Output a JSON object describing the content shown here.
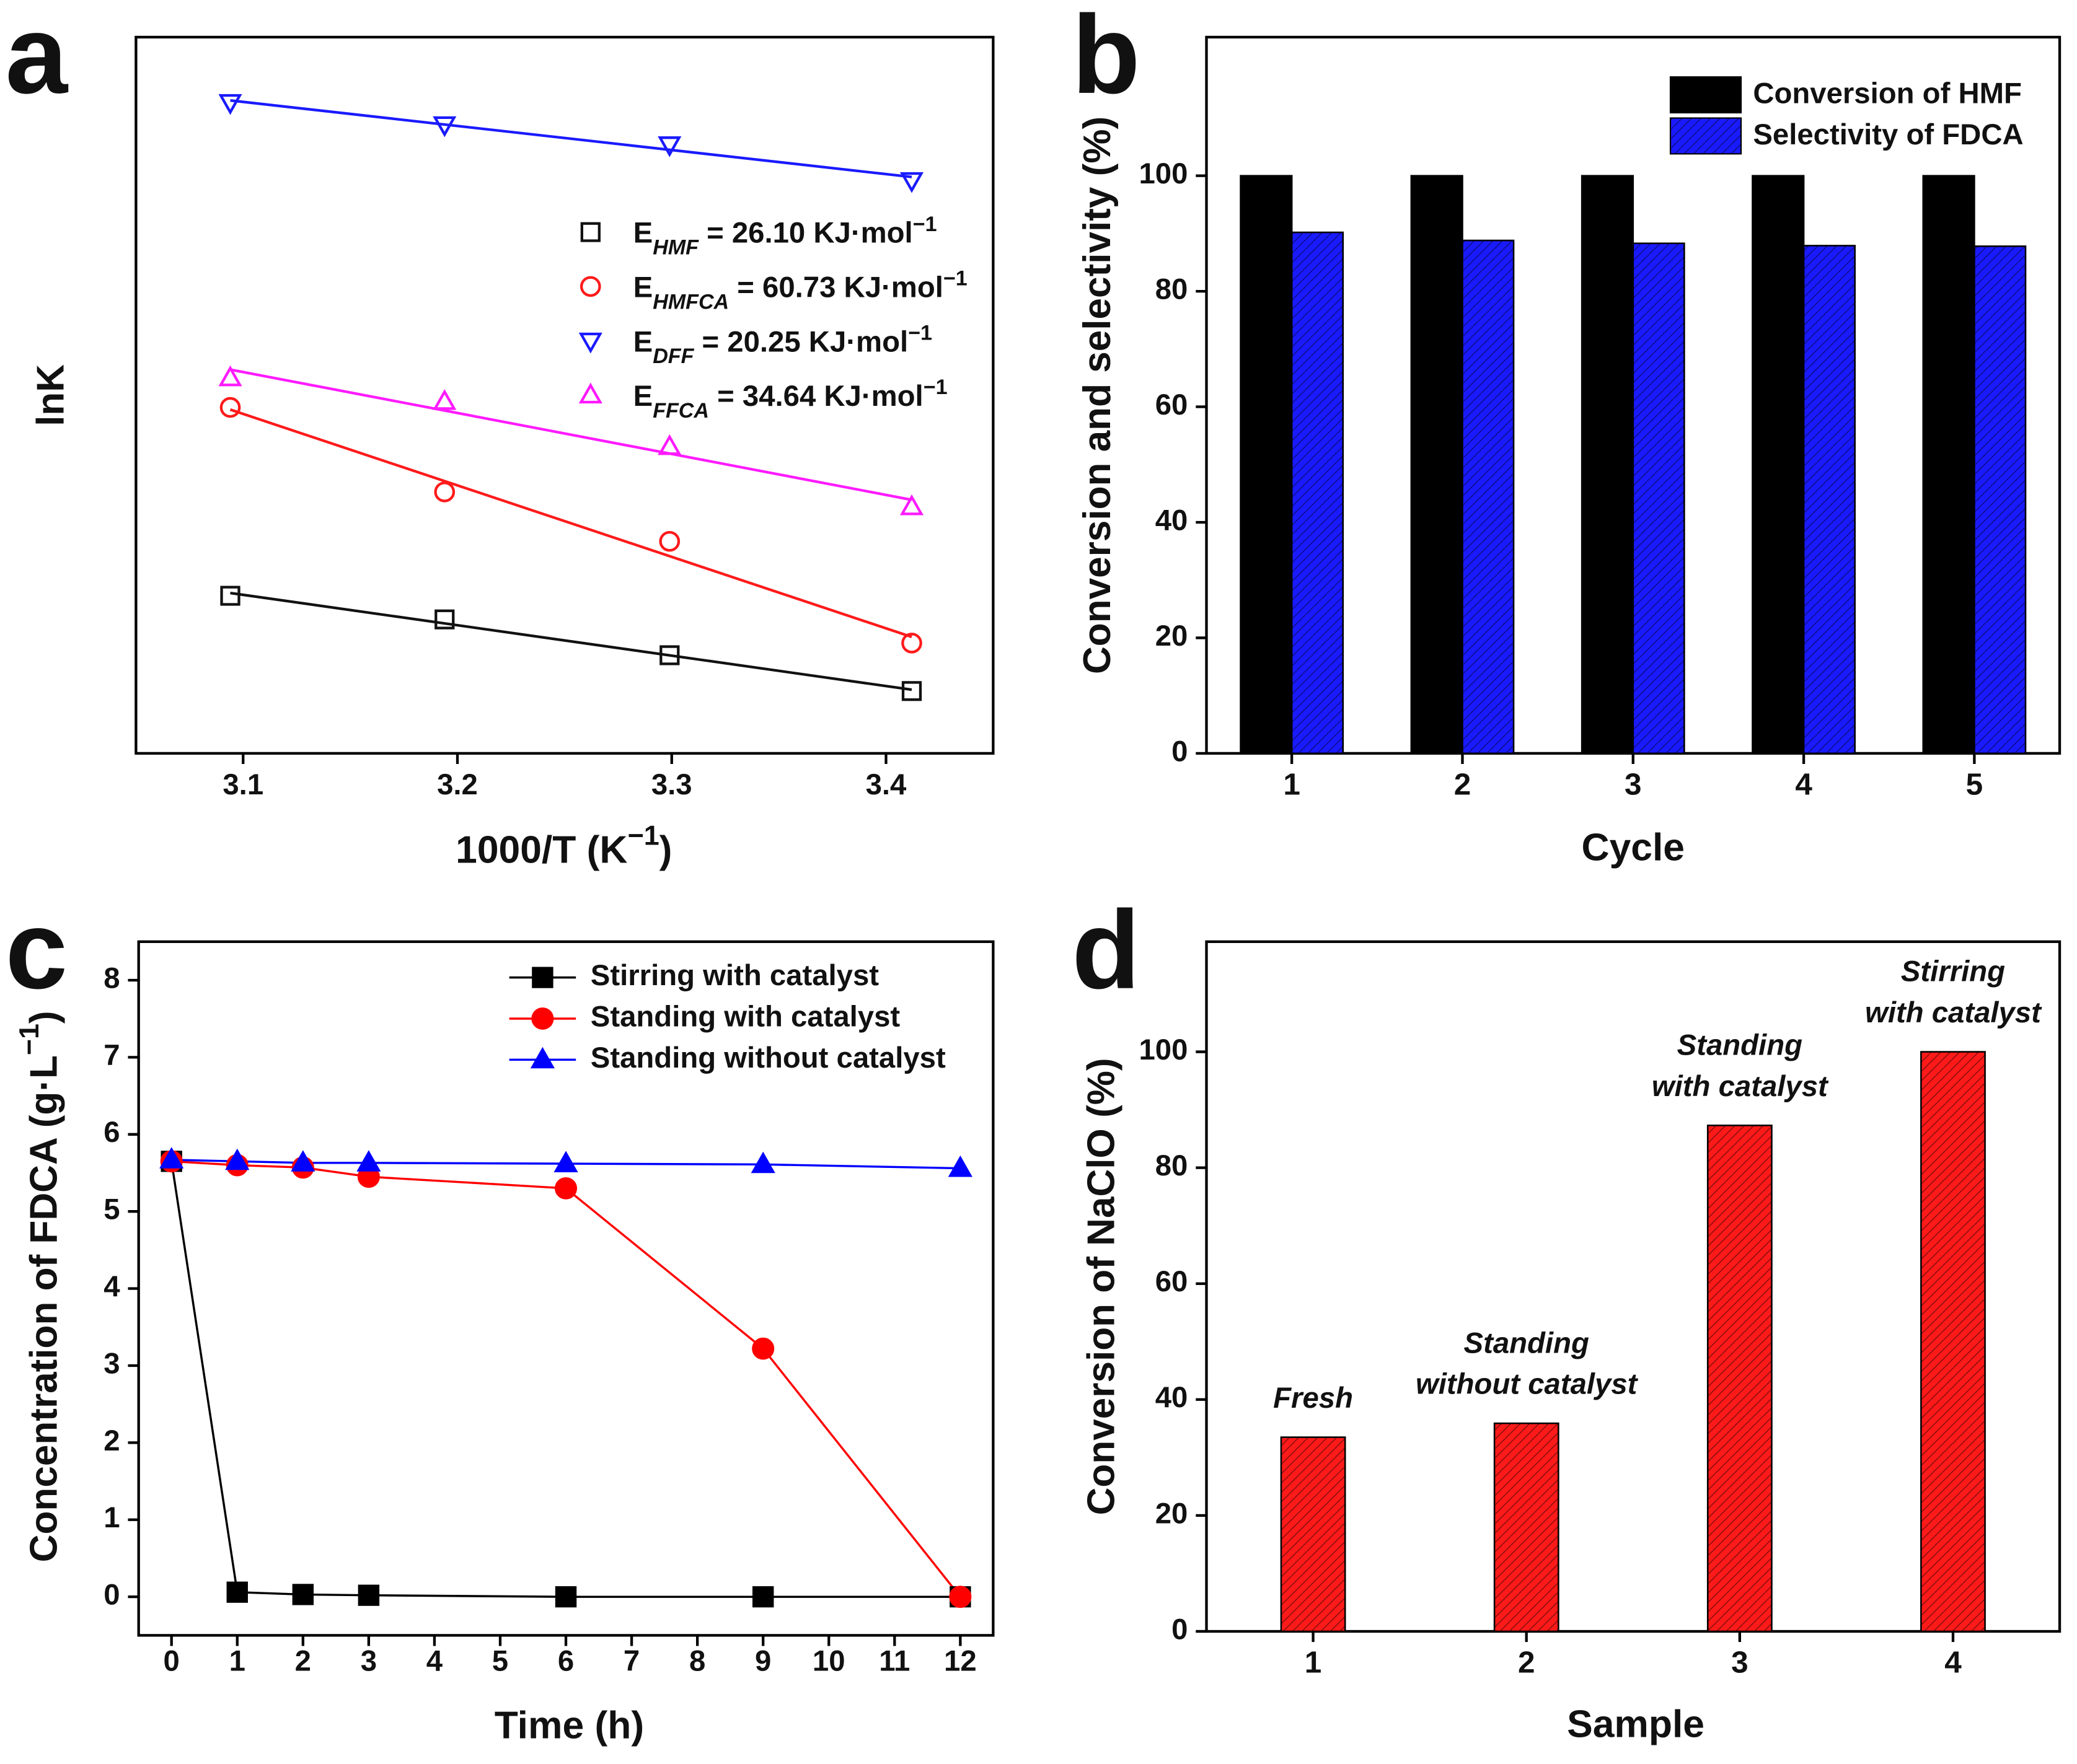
{
  "chart_data": [
    {
      "type": "scatter",
      "panel": "a",
      "trendline": "linear",
      "ylabel": "lnK",
      "xlabel": {
        "text": "1000/T (K",
        "sup": "−1",
        "end": ")"
      },
      "xlim": [
        3.05,
        3.45
      ],
      "xticks": [
        3.1,
        3.2,
        3.3,
        3.4
      ],
      "ylim": [
        0,
        10
      ],
      "series": [
        {
          "name": {
            "text": "E",
            "sub": "HMF",
            "rest": " = 26.10 KJ·mol",
            "sup": "−1"
          },
          "color": "#111111",
          "marker": "square",
          "x": [
            3.094,
            3.194,
            3.299,
            3.412
          ],
          "values": [
            2.2,
            1.87,
            1.37,
            0.87
          ]
        },
        {
          "name": {
            "text": "E",
            "sub": "HMFCA",
            "rest": " = 60.73 KJ·mol",
            "sup": "−1"
          },
          "color": "#ff1a1a",
          "marker": "circle",
          "x": [
            3.094,
            3.194,
            3.299,
            3.412
          ],
          "values": [
            4.83,
            3.65,
            2.96,
            1.54
          ]
        },
        {
          "name": {
            "text": "E",
            "sub": "DFF",
            "rest": " = 20.25 KJ·mol",
            "sup": "−1"
          },
          "color": "#1a1aff",
          "marker": "triangle-down",
          "x": [
            3.094,
            3.194,
            3.299,
            3.412
          ],
          "values": [
            9.09,
            8.78,
            8.5,
            8.0
          ]
        },
        {
          "name": {
            "text": "E",
            "sub": "FFCA",
            "rest": " = 34.64 KJ·mol",
            "sup": "−1"
          },
          "color": "#ff1aff",
          "marker": "triangle-up",
          "x": [
            3.094,
            3.194,
            3.299,
            3.412
          ],
          "values": [
            5.24,
            4.91,
            4.28,
            3.44
          ]
        }
      ]
    },
    {
      "type": "bar",
      "panel": "b",
      "xlabel": "Cycle",
      "ylabel": "Conversion and selectivity (%)",
      "categories": [
        "1",
        "2",
        "3",
        "4",
        "5"
      ],
      "ylim": [
        0,
        124
      ],
      "yticks": [
        0,
        20,
        40,
        60,
        80,
        100
      ],
      "series": [
        {
          "name": "Conversion of HMF",
          "color": "#000000",
          "hatch": false,
          "values": [
            100,
            100,
            100,
            100,
            100
          ]
        },
        {
          "name": "Selectivity of FDCA",
          "color": "#1a1aff",
          "hatch": true,
          "values": [
            90.2,
            88.8,
            88.3,
            87.9,
            87.8
          ]
        }
      ]
    },
    {
      "type": "line",
      "panel": "c",
      "xlabel": "Time (h)",
      "ylabel": {
        "text": "Concentration of FDCA (g·L",
        "sup": "−1",
        "end": ")"
      },
      "xlim": [
        -0.5,
        12.5
      ],
      "xticks": [
        0,
        1,
        2,
        3,
        4,
        5,
        6,
        7,
        8,
        9,
        10,
        11,
        12
      ],
      "ylim": [
        -0.5,
        8.5
      ],
      "yticks": [
        0,
        1,
        2,
        3,
        4,
        5,
        6,
        7,
        8
      ],
      "x": [
        0,
        1,
        2,
        3,
        6,
        9,
        12
      ],
      "series": [
        {
          "name": "Stirring with catalyst",
          "color": "#000000",
          "marker": "square",
          "values": [
            5.65,
            0.06,
            0.03,
            0.02,
            0.0,
            0.0,
            0.0
          ]
        },
        {
          "name": "Standing with catalyst",
          "color": "#ff0000",
          "marker": "circle",
          "values": [
            5.65,
            5.6,
            5.57,
            5.45,
            5.3,
            3.22,
            0.0
          ]
        },
        {
          "name": "Standing without catalyst",
          "color": "#0000ff",
          "marker": "triangle-up",
          "values": [
            5.67,
            5.65,
            5.63,
            5.63,
            5.62,
            5.61,
            5.56
          ]
        }
      ]
    },
    {
      "type": "bar",
      "panel": "d",
      "xlabel": "Sample",
      "ylabel": "Conversion of NaClO (%)",
      "categories": [
        "1",
        "2",
        "3",
        "4"
      ],
      "ylim": [
        0,
        119
      ],
      "yticks": [
        0,
        20,
        40,
        60,
        80,
        100
      ],
      "series": [
        {
          "color": "#ff1a1a",
          "hatch": true,
          "values": [
            33.5,
            35.9,
            87.3,
            100
          ]
        }
      ],
      "annotations": [
        [
          "Fresh"
        ],
        [
          "Standing",
          "without catalyst"
        ],
        [
          "Standing",
          "with catalyst"
        ],
        [
          "Stirring",
          "with catalyst"
        ]
      ]
    }
  ]
}
